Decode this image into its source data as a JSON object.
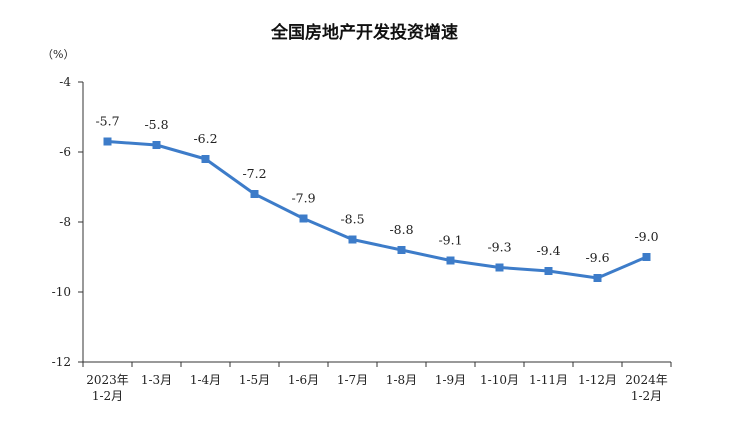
{
  "chart_data": {
    "type": "line",
    "title": "全国房地产开发投资增速",
    "unit_label": "（%）",
    "categories": [
      [
        "2023年",
        "1-2月"
      ],
      [
        "1-3月"
      ],
      [
        "1-4月"
      ],
      [
        "1-5月"
      ],
      [
        "1-6月"
      ],
      [
        "1-7月"
      ],
      [
        "1-8月"
      ],
      [
        "1-9月"
      ],
      [
        "1-10月"
      ],
      [
        "1-11月"
      ],
      [
        "1-12月"
      ],
      [
        "2024年",
        "1-2月"
      ]
    ],
    "values": [
      -5.7,
      -5.8,
      -6.2,
      -7.2,
      -7.9,
      -8.5,
      -8.8,
      -9.1,
      -9.3,
      -9.4,
      -9.6,
      -9.0
    ],
    "value_labels": [
      "-5.7",
      "-5.8",
      "-6.2",
      "-7.2",
      "-7.9",
      "-8.5",
      "-8.8",
      "-9.1",
      "-9.3",
      "-9.4",
      "-9.6",
      "-9.0"
    ],
    "ylim": [
      -12,
      -4
    ],
    "yticks": [
      "-4",
      "-6",
      "-8",
      "-10",
      "-12"
    ],
    "grid": false,
    "series_color": "#3d7cc9"
  }
}
